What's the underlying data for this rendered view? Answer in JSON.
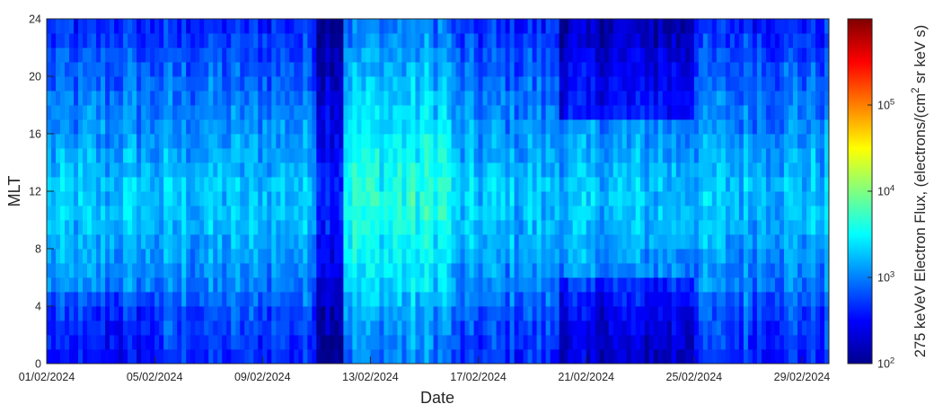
{
  "chart_data": {
    "type": "heatmap",
    "xlabel": "Date",
    "ylabel": "MLT",
    "x_start": "01/02/2024",
    "x_end": "01/03/2024",
    "x_ticks": [
      "01/02/2024",
      "05/02/2024",
      "09/02/2024",
      "13/02/2024",
      "17/02/2024",
      "21/02/2024",
      "25/02/2024",
      "29/02/2024"
    ],
    "y_ticks": [
      0,
      4,
      8,
      12,
      16,
      20,
      24
    ],
    "ylim": [
      0,
      24
    ],
    "colorbar": {
      "label_parts": [
        "275 keVeV Electron Flux, (electrons/(cm",
        "2",
        " sr keV s)"
      ],
      "scale": "log",
      "range": [
        100,
        1000000
      ],
      "tick_labels": [
        {
          "base": "10",
          "exp": "2"
        },
        {
          "base": "10",
          "exp": "3"
        },
        {
          "base": "10",
          "exp": "4"
        },
        {
          "base": "10",
          "exp": "5"
        }
      ],
      "colormap": "jet"
    },
    "mlt_bin_hours": 1,
    "time_bin_hours": 4,
    "log_flux_features": {
      "baseline": 3.0,
      "daily_profile_by_mlt": [
        -0.35,
        -0.3,
        -0.25,
        -0.2,
        -0.1,
        0.0,
        0.05,
        0.1,
        0.15,
        0.2,
        0.25,
        0.25,
        0.25,
        0.2,
        0.15,
        0.1,
        0.05,
        0.0,
        -0.05,
        -0.1,
        -0.15,
        -0.2,
        -0.3,
        -0.35
      ],
      "events": [
        {
          "start": "11/02/2024",
          "end": "12/02/2024",
          "shift": -0.55,
          "mlt_range": [
            0,
            24
          ]
        },
        {
          "start": "12/02/2024",
          "end": "16/02/2024",
          "shift": 0.35,
          "mlt_range": [
            0,
            24
          ]
        },
        {
          "start": "20/02/2024",
          "end": "25/02/2024",
          "shift": -0.35,
          "mlt_range": [
            0,
            6
          ]
        },
        {
          "start": "20/02/2024",
          "end": "25/02/2024",
          "shift": -0.45,
          "mlt_range": [
            17,
            24
          ]
        },
        {
          "start": "01/02/2024",
          "end": "05/02/2024",
          "shift": -0.15,
          "mlt_range": [
            0,
            5
          ]
        }
      ]
    }
  }
}
